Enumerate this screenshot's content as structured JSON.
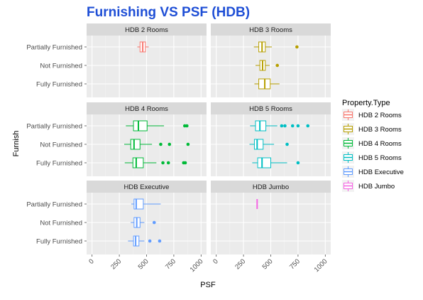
{
  "chart_data": {
    "type": "boxplot",
    "title": "Furnishing VS PSF (HDB)",
    "xlabel": "PSF",
    "ylabel": "Furnish",
    "xlim": [
      -50,
      1050
    ],
    "xticks": [
      0,
      250,
      500,
      750,
      1000
    ],
    "categories": [
      "Partially Furnished",
      "Not Furnished",
      "Fully Furnished"
    ],
    "legend": {
      "title": "Property.Type",
      "position": "right",
      "items": [
        "HDB 2 Rooms",
        "HDB 3 Rooms",
        "HDB 4 Rooms",
        "HDB 5 Rooms",
        "HDB Executive",
        "HDB Jumbo"
      ]
    },
    "grid": true,
    "panels": [
      {
        "name": "HDB 2 Rooms",
        "color": "#f8766d",
        "boxes": [
          {
            "category": "Partially Furnished",
            "min": 415,
            "q1": 440,
            "median": 465,
            "q3": 490,
            "max": 520,
            "outliers": []
          }
        ]
      },
      {
        "name": "HDB 3 Rooms",
        "color": "#b79f00",
        "boxes": [
          {
            "category": "Partially Furnished",
            "min": 345,
            "q1": 390,
            "median": 420,
            "q3": 450,
            "max": 510,
            "outliers": [
              740
            ]
          },
          {
            "category": "Not Furnished",
            "min": 360,
            "q1": 400,
            "median": 425,
            "q3": 450,
            "max": 490,
            "outliers": [
              560
            ]
          },
          {
            "category": "Fully Furnished",
            "min": 350,
            "q1": 390,
            "median": 445,
            "q3": 495,
            "max": 580,
            "outliers": []
          }
        ]
      },
      {
        "name": "HDB 4 Rooms",
        "color": "#00ba38",
        "boxes": [
          {
            "category": "Partially Furnished",
            "min": 310,
            "q1": 380,
            "median": 425,
            "q3": 505,
            "max": 660,
            "outliers": [
              850,
              870
            ]
          },
          {
            "category": "Not Furnished",
            "min": 295,
            "q1": 355,
            "median": 385,
            "q3": 440,
            "max": 550,
            "outliers": [
              630,
              710,
              880
            ]
          },
          {
            "category": "Fully Furnished",
            "min": 300,
            "q1": 375,
            "median": 405,
            "q3": 470,
            "max": 590,
            "outliers": [
              650,
              700,
              840,
              855
            ]
          }
        ]
      },
      {
        "name": "HDB 5 Rooms",
        "color": "#00bfc4",
        "boxes": [
          {
            "category": "Partially Furnished",
            "min": 310,
            "q1": 360,
            "median": 400,
            "q3": 455,
            "max": 560,
            "outliers": [
              600,
              630,
              700,
              750,
              840
            ]
          },
          {
            "category": "Not Furnished",
            "min": 305,
            "q1": 350,
            "median": 375,
            "q3": 430,
            "max": 530,
            "outliers": [
              650
            ]
          },
          {
            "category": "Fully Furnished",
            "min": 330,
            "q1": 380,
            "median": 420,
            "q3": 500,
            "max": 650,
            "outliers": [
              750
            ]
          }
        ]
      },
      {
        "name": "HDB Executive",
        "color": "#619cff",
        "boxes": [
          {
            "category": "Partially Furnished",
            "min": 360,
            "q1": 385,
            "median": 405,
            "q3": 470,
            "max": 630,
            "outliers": []
          },
          {
            "category": "Not Furnished",
            "min": 355,
            "q1": 385,
            "median": 410,
            "q3": 440,
            "max": 480,
            "outliers": [
              570
            ]
          },
          {
            "category": "Fully Furnished",
            "min": 330,
            "q1": 380,
            "median": 400,
            "q3": 430,
            "max": 480,
            "outliers": [
              530,
              620
            ]
          }
        ]
      },
      {
        "name": "HDB Jumbo",
        "color": "#f564e3",
        "boxes": [
          {
            "category": "Partially Furnished",
            "min": 375,
            "q1": 375,
            "median": 375,
            "q3": 375,
            "max": 375,
            "outliers": []
          }
        ]
      }
    ]
  }
}
